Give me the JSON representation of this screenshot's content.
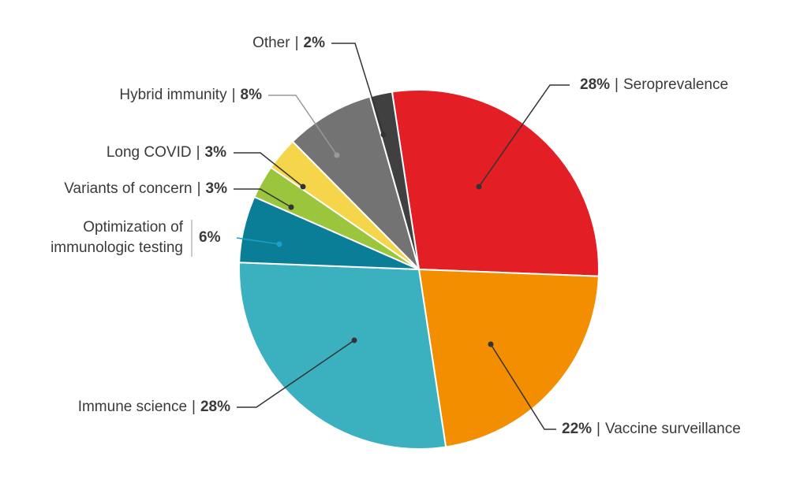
{
  "chart_data": {
    "type": "pie",
    "categories": [
      "Seroprevalence",
      "Vaccine surveillance",
      "Immune science",
      "Optimization of immunologic testing",
      "Variants of concern",
      "Long COVID",
      "Hybrid immunity",
      "Other"
    ],
    "values": [
      28,
      22,
      28,
      6,
      3,
      3,
      8,
      2
    ],
    "value_labels": [
      "28%",
      "22%",
      "28%",
      "6%",
      "3%",
      "3%",
      "8%",
      "2%"
    ],
    "colors": [
      "#e31e24",
      "#f28e00",
      "#3bb0bf",
      "#0a7e97",
      "#9bc53d",
      "#f5d54a",
      "#737373",
      "#404040"
    ],
    "separator": "|"
  }
}
